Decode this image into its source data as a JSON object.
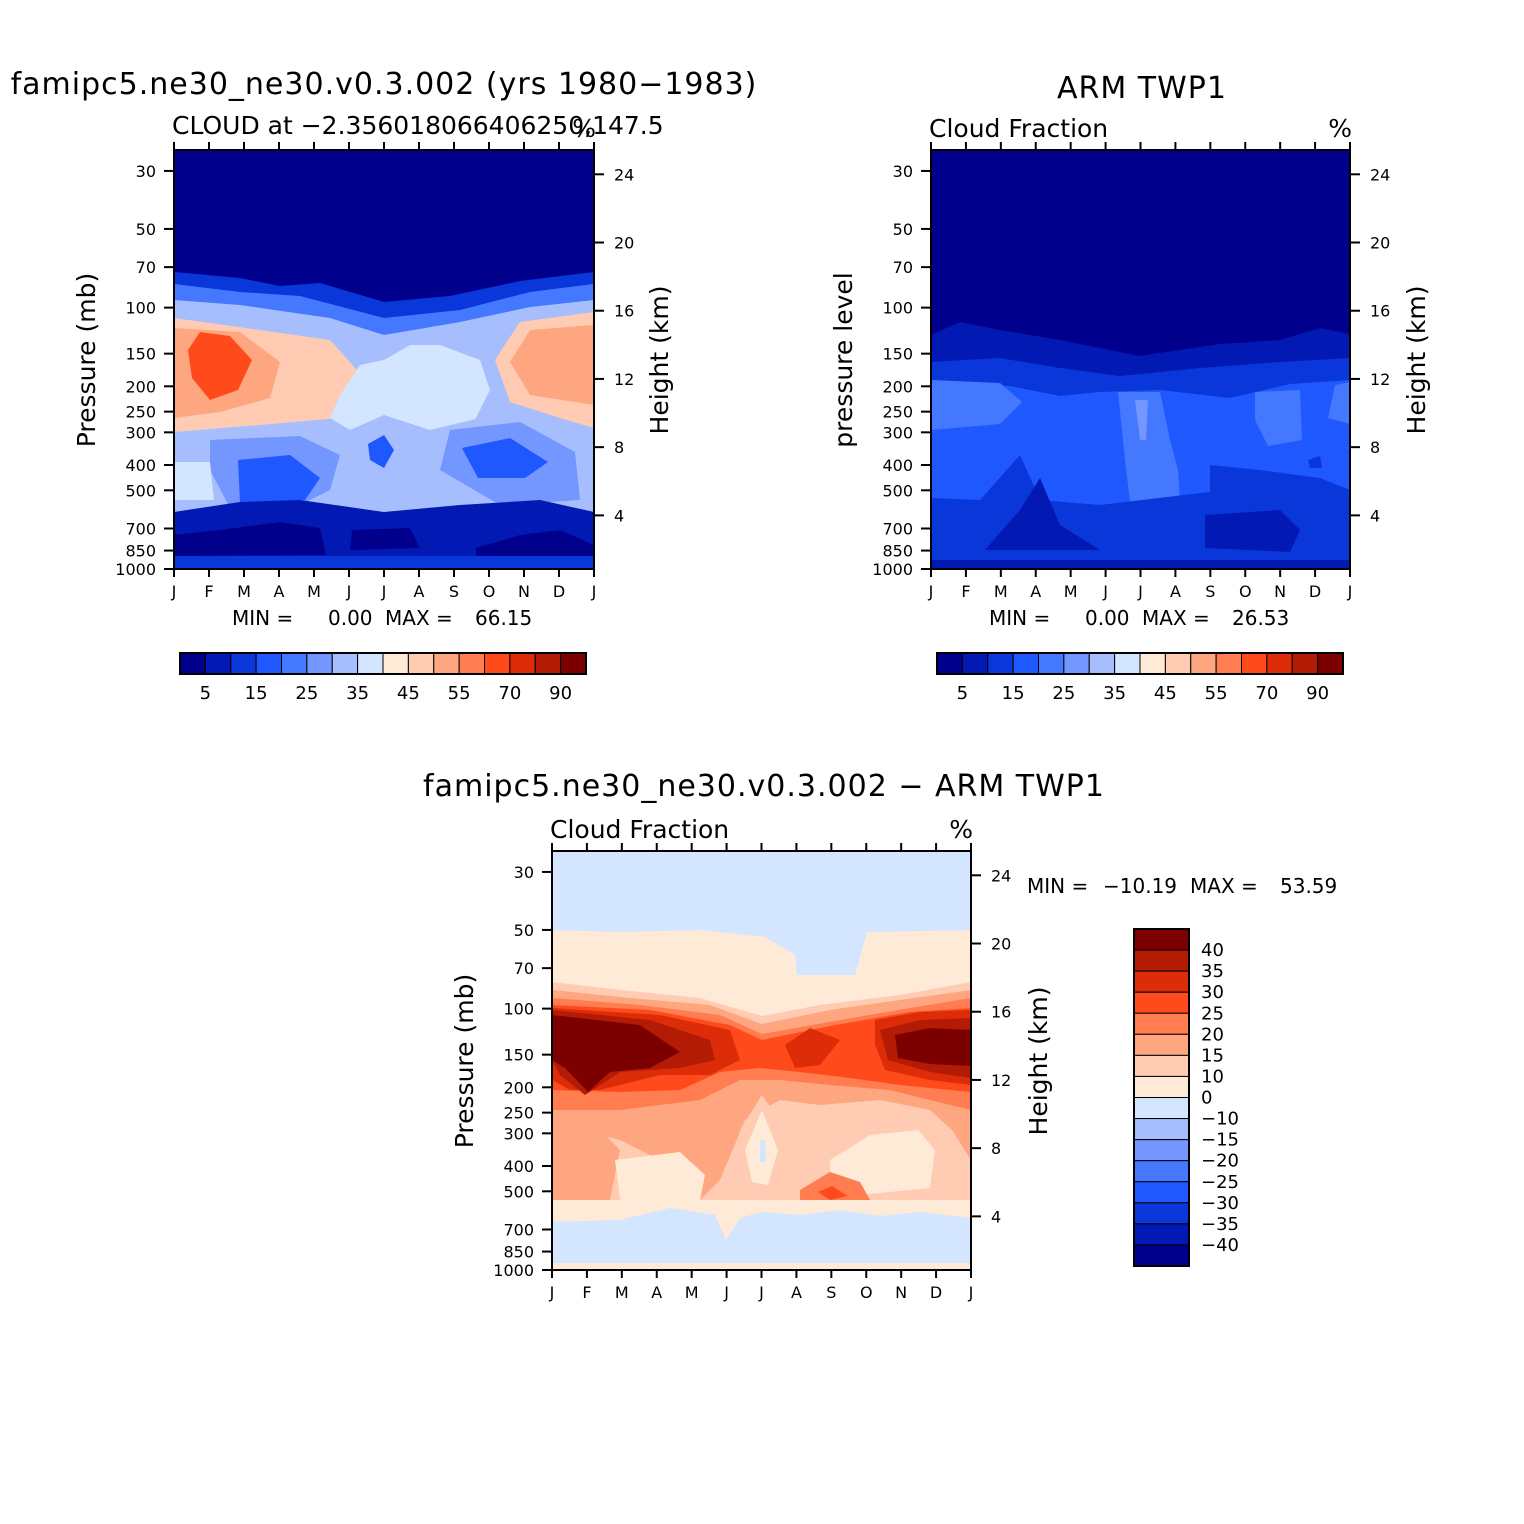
{
  "chart_data": [
    {
      "type": "heatmap",
      "title": "famipc5.ne30_ne30.v0.3.002 (yrs 1980−1983)",
      "subtitle": "CLOUD at −2.356018066406250,147.5",
      "units": "%",
      "ylabel": "Pressure (mb)",
      "ylabel_right": "Height (km)",
      "months": [
        "J",
        "F",
        "M",
        "A",
        "M",
        "J",
        "J",
        "A",
        "S",
        "O",
        "N",
        "D",
        "J"
      ],
      "pressure_ticks": [
        "30",
        "50",
        "70",
        "100",
        "150",
        "200",
        "250",
        "300",
        "400",
        "500",
        "700",
        "850",
        "1000"
      ],
      "height_ticks": [
        "24",
        "20",
        "16",
        "12",
        "8",
        "4"
      ],
      "min_label": "MIN =",
      "min_value": "0.00",
      "max_label": "MAX =",
      "max_value": "66.15",
      "colorbar_labels": [
        "5",
        "15",
        "25",
        "35",
        "45",
        "55",
        "70",
        "90"
      ],
      "colorbar_colors": [
        "#00008c",
        "#0319b3",
        "#0a37d9",
        "#2058ff",
        "#4478ff",
        "#7396ff",
        "#a6bdfe",
        "#d3e5ff",
        "#ffe9d7",
        "#ffcbb2",
        "#fea680",
        "#ff7d51",
        "#ff4b1b",
        "#dc2c08",
        "#b31b04",
        "#7d0000"
      ]
    },
    {
      "type": "heatmap",
      "title": "ARM TWP1",
      "subtitle": "Cloud Fraction",
      "units": "%",
      "ylabel": "pressure level",
      "ylabel_right": "Height (km)",
      "months": [
        "J",
        "F",
        "M",
        "A",
        "M",
        "J",
        "J",
        "A",
        "S",
        "O",
        "N",
        "D",
        "J"
      ],
      "pressure_ticks": [
        "30",
        "50",
        "70",
        "100",
        "150",
        "200",
        "250",
        "300",
        "400",
        "500",
        "700",
        "850",
        "1000"
      ],
      "height_ticks": [
        "24",
        "20",
        "16",
        "12",
        "8",
        "4"
      ],
      "min_label": "MIN =",
      "min_value": "0.00",
      "max_label": "MAX =",
      "max_value": "26.53",
      "colorbar_labels": [
        "5",
        "15",
        "25",
        "35",
        "45",
        "55",
        "70",
        "90"
      ],
      "colorbar_colors": [
        "#00008c",
        "#0319b3",
        "#0a37d9",
        "#2058ff",
        "#4478ff",
        "#7396ff",
        "#a6bdfe",
        "#d3e5ff",
        "#ffe9d7",
        "#ffcbb2",
        "#fea680",
        "#ff7d51",
        "#ff4b1b",
        "#dc2c08",
        "#b31b04",
        "#7d0000"
      ]
    },
    {
      "type": "heatmap",
      "title": "famipc5.ne30_ne30.v0.3.002 − ARM TWP1",
      "subtitle": "Cloud Fraction",
      "units": "%",
      "ylabel": "Pressure (mb)",
      "ylabel_right": "Height (km)",
      "months": [
        "J",
        "F",
        "M",
        "A",
        "M",
        "J",
        "J",
        "A",
        "S",
        "O",
        "N",
        "D",
        "J"
      ],
      "pressure_ticks": [
        "30",
        "50",
        "70",
        "100",
        "150",
        "200",
        "250",
        "300",
        "400",
        "500",
        "700",
        "850",
        "1000"
      ],
      "height_ticks": [
        "24",
        "20",
        "16",
        "12",
        "8",
        "4"
      ],
      "min_label": "MIN =",
      "min_value": "−10.19",
      "max_label": "MAX =",
      "max_value": "53.59",
      "colorbar_labels": [
        "40",
        "35",
        "30",
        "25",
        "20",
        "15",
        "10",
        "0",
        "−10",
        "−15",
        "−20",
        "−25",
        "−30",
        "−35",
        "−40"
      ],
      "colorbar_colors": [
        "#7d0000",
        "#b31b04",
        "#dc2c08",
        "#ff4b1b",
        "#ff7d51",
        "#fea680",
        "#ffcbb2",
        "#ffe9d7",
        "#d3e5ff",
        "#a6bdfe",
        "#7396ff",
        "#4478ff",
        "#2058ff",
        "#0a37d9",
        "#0319b3",
        "#00008c"
      ]
    }
  ]
}
